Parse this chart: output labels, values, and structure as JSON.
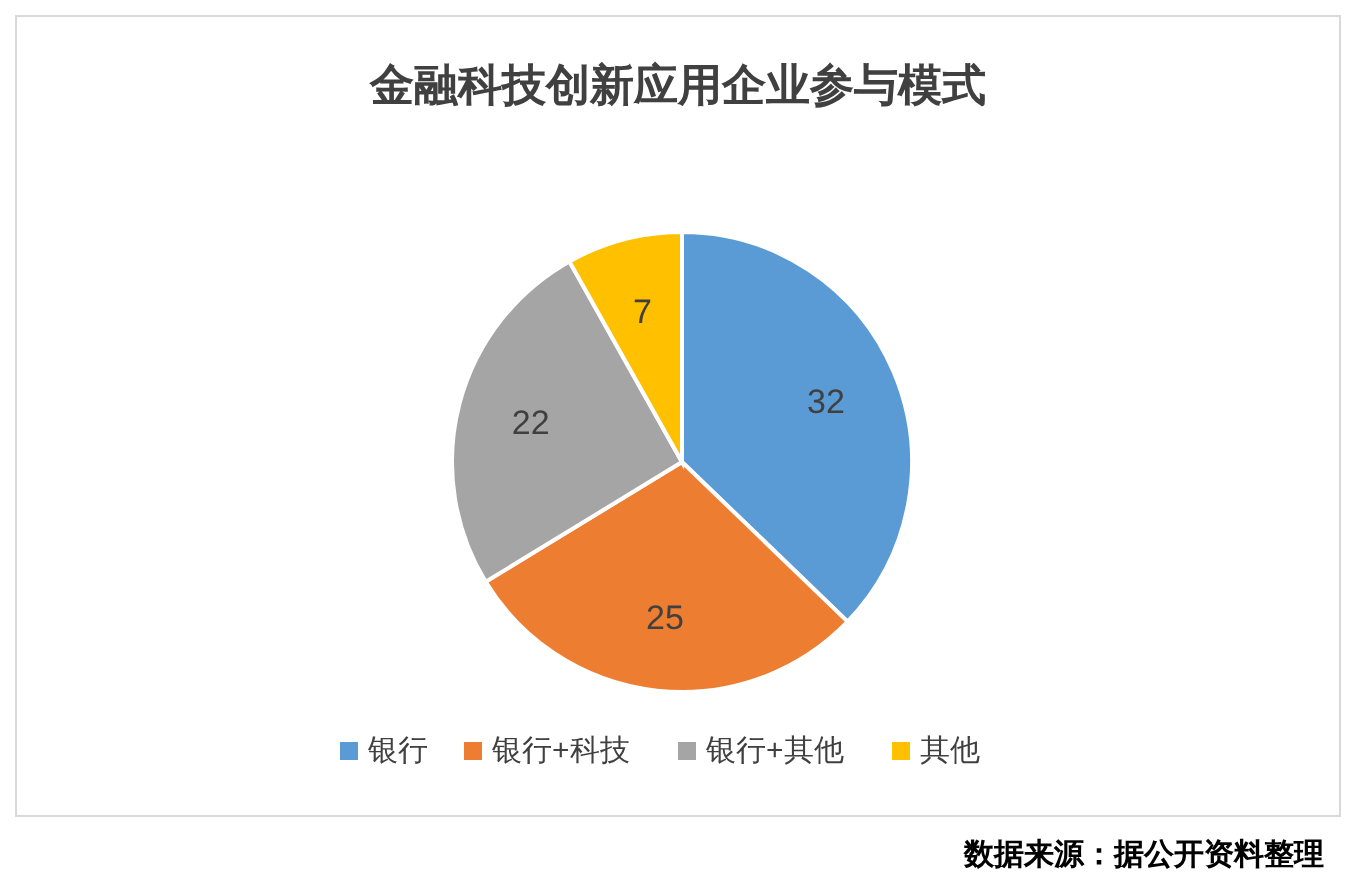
{
  "chart_data": {
    "type": "pie",
    "title": "金融科技创新应用企业参与模式",
    "categories": [
      "银行",
      "银行+科技",
      "银行+其他",
      "其他"
    ],
    "values": [
      32,
      25,
      22,
      7
    ],
    "colors": [
      "#5b9bd5",
      "#ed7d31",
      "#a5a5a5",
      "#ffc000"
    ],
    "data_labels": true,
    "legend": "bottom",
    "annotations": [
      "数据来源：据公开资料整理"
    ]
  }
}
